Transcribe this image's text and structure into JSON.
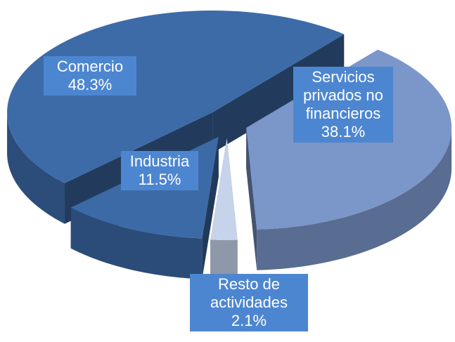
{
  "chart_data": {
    "type": "pie",
    "categories": [
      "Comercio",
      "Servicios privados no financieros",
      "Resto de actividades",
      "Industria"
    ],
    "values": [
      48.3,
      38.1,
      2.1,
      11.5
    ],
    "value_labels": [
      "48.3%",
      "38.1%",
      "2.1%",
      "11.5%"
    ],
    "colors": [
      "#3d6ba8",
      "#7b96c9",
      "#c6d3ea",
      "#3c6aa6"
    ]
  }
}
